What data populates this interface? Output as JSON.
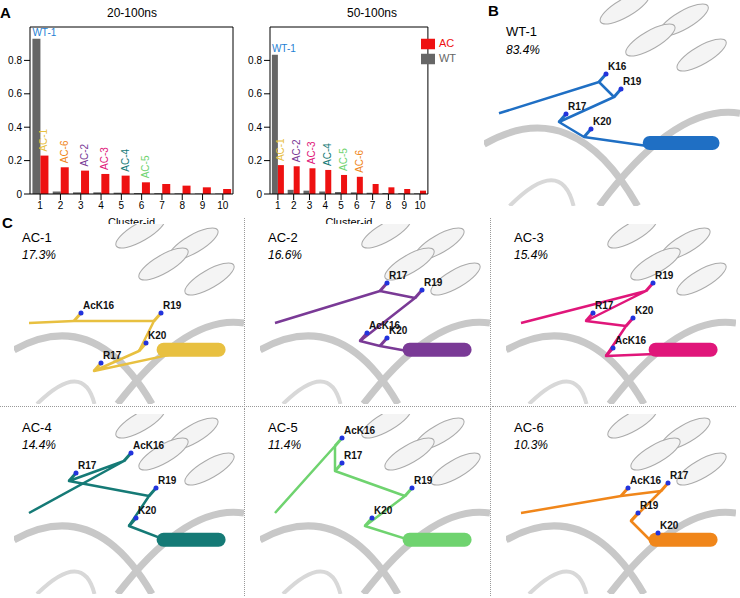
{
  "chart_data": [
    {
      "type": "bar",
      "panel_label": "A",
      "title": "20-100ns",
      "x_label": "Cluster-id",
      "categories": [
        1,
        2,
        3,
        4,
        5,
        6,
        7,
        8,
        9,
        10
      ],
      "series": [
        {
          "name": "WT",
          "color": "#666666",
          "values": [
            0.93,
            0.015,
            0.01,
            0.01,
            0.008,
            0.006,
            0.005,
            0.004,
            0.003,
            0.003
          ]
        },
        {
          "name": "AC",
          "color": "#ee1111",
          "values": [
            0.23,
            0.16,
            0.14,
            0.12,
            0.11,
            0.07,
            0.06,
            0.05,
            0.04,
            0.03
          ]
        }
      ],
      "ylim": [
        0,
        1
      ],
      "yticks": [
        0,
        0.2,
        0.4,
        0.6,
        0.8
      ],
      "grid": false,
      "annotations": [
        {
          "text": "WT-1",
          "category": 1,
          "series": "WT",
          "color": "#1f7fd4"
        },
        {
          "text": "AC-1",
          "category": 1,
          "series": "AC",
          "color": "#e8c040"
        },
        {
          "text": "AC-6",
          "category": 2,
          "series": "AC",
          "color": "#f0861a"
        },
        {
          "text": "AC-2",
          "category": 3,
          "series": "AC",
          "color": "#7a3a96"
        },
        {
          "text": "AC-3",
          "category": 4,
          "series": "AC",
          "color": "#e0167a"
        },
        {
          "text": "AC-4",
          "category": 5,
          "series": "AC",
          "color": "#157a76"
        },
        {
          "text": "AC-5",
          "category": 6,
          "series": "AC",
          "color": "#6fd36f"
        }
      ]
    },
    {
      "type": "bar",
      "title": "50-100ns",
      "x_label": "Cluster-id",
      "categories": [
        1,
        2,
        3,
        4,
        5,
        6,
        7,
        8,
        9,
        10
      ],
      "series": [
        {
          "name": "WT",
          "color": "#666666",
          "values": [
            0.834,
            0.025,
            0.02,
            0.015,
            0.012,
            0.01,
            0.008,
            0.006,
            0.005,
            0.004
          ]
        },
        {
          "name": "AC",
          "color": "#ee1111",
          "values": [
            0.173,
            0.166,
            0.154,
            0.144,
            0.114,
            0.103,
            0.06,
            0.04,
            0.03,
            0.02
          ]
        }
      ],
      "ylim": [
        0,
        1
      ],
      "yticks": [
        0,
        0.2,
        0.4,
        0.6,
        0.8
      ],
      "grid": false,
      "legend": "upper right",
      "annotations": [
        {
          "text": "WT-1",
          "category": 1,
          "series": "WT",
          "color": "#1f7fd4"
        },
        {
          "text": "AC-1",
          "category": 1,
          "series": "AC",
          "color": "#e8c040"
        },
        {
          "text": "AC-2",
          "category": 2,
          "series": "AC",
          "color": "#7a3a96"
        },
        {
          "text": "AC-3",
          "category": 3,
          "series": "AC",
          "color": "#e0167a"
        },
        {
          "text": "AC-4",
          "category": 4,
          "series": "AC",
          "color": "#157a76"
        },
        {
          "text": "AC-5",
          "category": 5,
          "series": "AC",
          "color": "#6fd36f"
        },
        {
          "text": "AC-6",
          "category": 6,
          "series": "AC",
          "color": "#f0861a"
        }
      ]
    }
  ],
  "structure_panels": {
    "B": {
      "label": "B",
      "title": "WT-1",
      "percent": "83.4%",
      "color": "#1f6fc4",
      "residues": [
        "K16",
        "R19",
        "R17",
        "K20"
      ]
    },
    "C": {
      "label": "C",
      "panels": [
        {
          "title": "AC-1",
          "percent": "17.3%",
          "color": "#e8c040",
          "residues": [
            "AcK16",
            "R19",
            "K20",
            "R17"
          ]
        },
        {
          "title": "AC-2",
          "percent": "16.6%",
          "color": "#7a3a96",
          "residues": [
            "R17",
            "R19",
            "AcK16",
            "K20"
          ]
        },
        {
          "title": "AC-3",
          "percent": "15.4%",
          "color": "#e0167a",
          "residues": [
            "R19",
            "R17",
            "K20",
            "AcK16"
          ]
        },
        {
          "title": "AC-4",
          "percent": "14.4%",
          "color": "#157a76",
          "residues": [
            "AcK16",
            "R17",
            "R19",
            "K20"
          ]
        },
        {
          "title": "AC-5",
          "percent": "11.4%",
          "color": "#6fd36f",
          "residues": [
            "AcK16",
            "R17",
            "R19",
            "K20"
          ]
        },
        {
          "title": "AC-6",
          "percent": "10.3%",
          "color": "#f0861a",
          "residues": [
            "AcK16",
            "R17",
            "R19",
            "K20"
          ]
        }
      ]
    }
  }
}
